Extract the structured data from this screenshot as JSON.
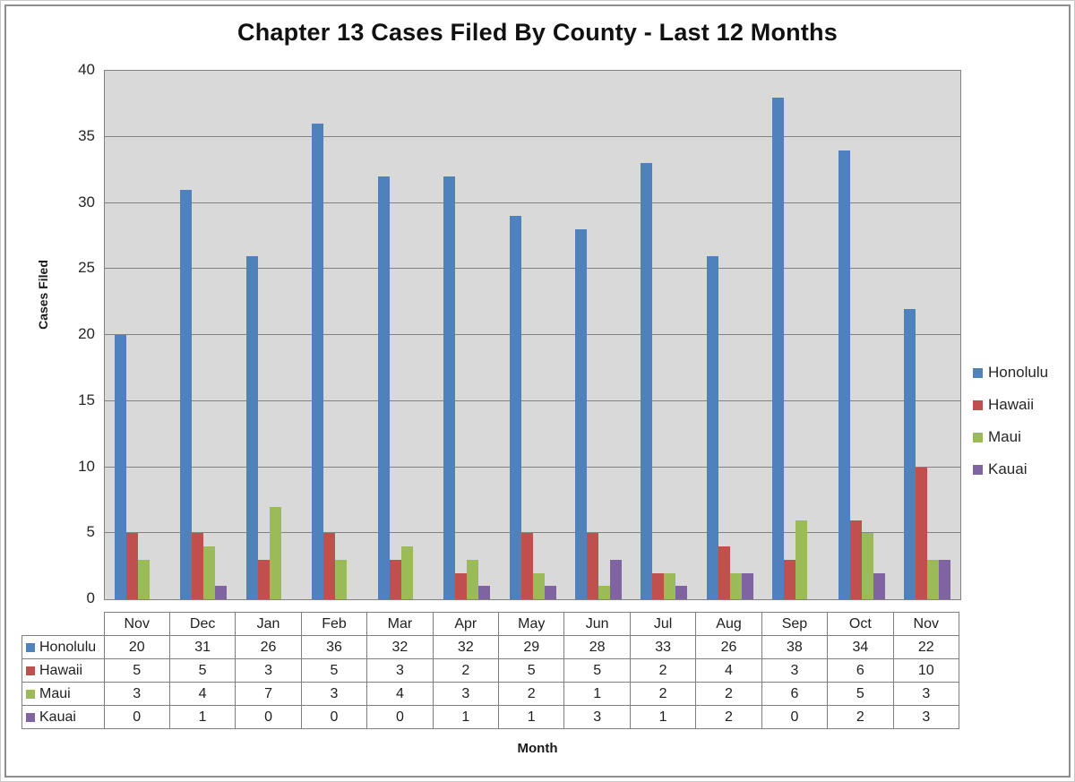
{
  "chart_data": {
    "type": "bar",
    "title": "Chapter 13 Cases Filed By County - Last 12 Months",
    "xlabel": "Month",
    "ylabel": "Cases Filed",
    "ylim": [
      0,
      40
    ],
    "ytick_step": 5,
    "grid": true,
    "legend_position": "right",
    "categories": [
      "Nov",
      "Dec",
      "Jan",
      "Feb",
      "Mar",
      "Apr",
      "May",
      "Jun",
      "Jul",
      "Aug",
      "Sep",
      "Oct",
      "Nov"
    ],
    "series": [
      {
        "name": "Honolulu",
        "color": "#4F81BD",
        "values": [
          20,
          31,
          26,
          36,
          32,
          32,
          29,
          28,
          33,
          26,
          38,
          34,
          22
        ]
      },
      {
        "name": "Hawaii",
        "color": "#C0504D",
        "values": [
          5,
          5,
          3,
          5,
          3,
          2,
          5,
          5,
          2,
          4,
          3,
          6,
          10
        ]
      },
      {
        "name": "Maui",
        "color": "#9BBB59",
        "values": [
          3,
          4,
          7,
          3,
          4,
          3,
          2,
          1,
          2,
          2,
          6,
          5,
          3
        ]
      },
      {
        "name": "Kauai",
        "color": "#8064A2",
        "values": [
          0,
          1,
          0,
          0,
          0,
          1,
          1,
          3,
          1,
          2,
          0,
          2,
          3
        ]
      }
    ]
  },
  "colors": {
    "plot_background": "#D9D9D9",
    "gridline": "#828282",
    "plot_border": "#828282",
    "table_border": "#7F7F7F",
    "text": "#262626"
  }
}
